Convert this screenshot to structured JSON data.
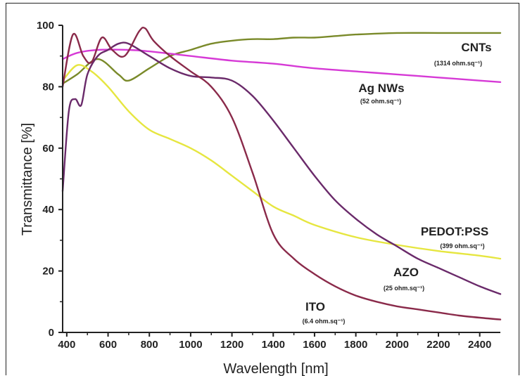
{
  "chart_data": {
    "type": "line",
    "xlabel": "Wavelength  [nm]",
    "ylabel": "Transmittance  [%]",
    "xlim": [
      380,
      2500
    ],
    "ylim": [
      0,
      100
    ],
    "xticks": [
      400,
      600,
      800,
      1000,
      1200,
      1400,
      1600,
      1800,
      2000,
      2200,
      2400
    ],
    "yticks": [
      0,
      20,
      40,
      60,
      80,
      100
    ],
    "grid": false,
    "legend": "inline labels",
    "series": [
      {
        "name": "CNTs",
        "note": "(1314 ohm.sq⁻¹)",
        "color": "#7a8a2a",
        "points": [
          [
            380,
            81
          ],
          [
            450,
            84
          ],
          [
            550,
            89
          ],
          [
            650,
            84
          ],
          [
            700,
            82
          ],
          [
            800,
            86
          ],
          [
            900,
            90
          ],
          [
            1000,
            92
          ],
          [
            1100,
            94
          ],
          [
            1200,
            95
          ],
          [
            1300,
            95.5
          ],
          [
            1400,
            95.5
          ],
          [
            1500,
            96
          ],
          [
            1600,
            96
          ],
          [
            1700,
            96.5
          ],
          [
            1800,
            97
          ],
          [
            2000,
            97.5
          ],
          [
            2200,
            97.5
          ],
          [
            2400,
            97.5
          ],
          [
            2500,
            97.5
          ]
        ]
      },
      {
        "name": "Ag NWs",
        "note": "(52 ohm.sq⁻¹)",
        "color": "#d63ad6",
        "points": [
          [
            380,
            89
          ],
          [
            450,
            91
          ],
          [
            550,
            92
          ],
          [
            700,
            92
          ],
          [
            800,
            91.5
          ],
          [
            1000,
            90
          ],
          [
            1200,
            88.5
          ],
          [
            1400,
            87.5
          ],
          [
            1600,
            86
          ],
          [
            1800,
            85
          ],
          [
            2000,
            84
          ],
          [
            2200,
            83
          ],
          [
            2400,
            82
          ],
          [
            2500,
            81.5
          ]
        ]
      },
      {
        "name": "PEDOT:PSS",
        "note": "(399 ohm.sq⁻¹)",
        "color": "#e6e640",
        "points": [
          [
            380,
            82
          ],
          [
            450,
            87
          ],
          [
            520,
            85
          ],
          [
            600,
            80
          ],
          [
            700,
            72
          ],
          [
            800,
            66
          ],
          [
            900,
            63
          ],
          [
            1000,
            60
          ],
          [
            1100,
            56
          ],
          [
            1200,
            51
          ],
          [
            1300,
            46
          ],
          [
            1400,
            41
          ],
          [
            1500,
            38
          ],
          [
            1600,
            35
          ],
          [
            1800,
            31
          ],
          [
            2000,
            28.5
          ],
          [
            2200,
            26.5
          ],
          [
            2400,
            25
          ],
          [
            2500,
            24
          ]
        ]
      },
      {
        "name": "AZO",
        "note": "(25 ohm.sq⁻¹)",
        "color": "#6a2a6a",
        "points": [
          [
            380,
            46
          ],
          [
            410,
            72
          ],
          [
            440,
            76
          ],
          [
            470,
            74
          ],
          [
            500,
            84
          ],
          [
            550,
            90
          ],
          [
            600,
            92
          ],
          [
            650,
            94
          ],
          [
            700,
            94
          ],
          [
            800,
            90
          ],
          [
            900,
            86
          ],
          [
            1000,
            83.5
          ],
          [
            1100,
            83
          ],
          [
            1200,
            82
          ],
          [
            1300,
            77
          ],
          [
            1400,
            69
          ],
          [
            1500,
            60
          ],
          [
            1600,
            51
          ],
          [
            1700,
            43
          ],
          [
            1800,
            37
          ],
          [
            1900,
            32
          ],
          [
            2000,
            28
          ],
          [
            2100,
            24
          ],
          [
            2200,
            21
          ],
          [
            2300,
            18
          ],
          [
            2400,
            15
          ],
          [
            2500,
            12.5
          ]
        ]
      },
      {
        "name": "ITO",
        "note": "(6.4 ohm.sq⁻¹)",
        "color": "#8a2a4a",
        "points": [
          [
            380,
            80
          ],
          [
            430,
            97
          ],
          [
            480,
            90
          ],
          [
            520,
            88
          ],
          [
            570,
            96
          ],
          [
            620,
            92
          ],
          [
            680,
            90
          ],
          [
            750,
            98
          ],
          [
            780,
            99
          ],
          [
            820,
            95
          ],
          [
            900,
            90
          ],
          [
            1000,
            85
          ],
          [
            1100,
            80
          ],
          [
            1200,
            70
          ],
          [
            1300,
            52
          ],
          [
            1400,
            32
          ],
          [
            1500,
            24
          ],
          [
            1600,
            19
          ],
          [
            1700,
            15
          ],
          [
            1800,
            12
          ],
          [
            1900,
            10
          ],
          [
            2000,
            8.5
          ],
          [
            2100,
            7.5
          ],
          [
            2200,
            6.5
          ],
          [
            2300,
            5.5
          ],
          [
            2400,
            4.8
          ],
          [
            2500,
            4.2
          ]
        ]
      }
    ]
  }
}
